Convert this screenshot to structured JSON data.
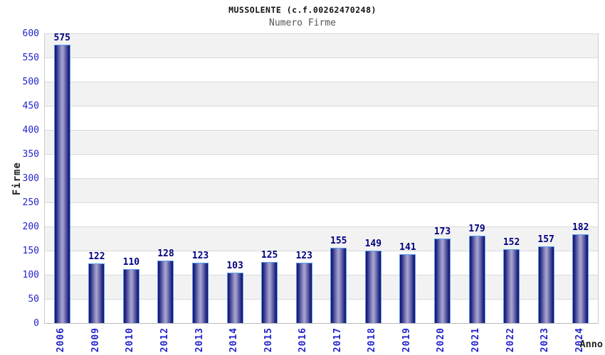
{
  "chart_data": {
    "type": "bar",
    "title": "MUSSOLENTE (c.f.00262470248)",
    "subtitle": "Numero Firme",
    "xlabel": "Anno",
    "ylabel": "Firme",
    "categories": [
      "2006",
      "2009",
      "2010",
      "2012",
      "2013",
      "2014",
      "2015",
      "2016",
      "2017",
      "2018",
      "2019",
      "2020",
      "2021",
      "2022",
      "2023",
      "2024"
    ],
    "values": [
      575,
      122,
      110,
      128,
      123,
      103,
      125,
      123,
      155,
      149,
      141,
      173,
      179,
      152,
      157,
      182
    ],
    "ylim": [
      0,
      600
    ],
    "yticks": [
      0,
      50,
      100,
      150,
      200,
      250,
      300,
      350,
      400,
      450,
      500,
      550,
      600
    ],
    "grid": "horizontal-bands-every-50",
    "legend": "none",
    "colors": {
      "bar_dark": "#14145f",
      "bar_light": "#a8a8d4",
      "bar_border": "#58a0ec",
      "tick_label_blue": "#2424cc",
      "value_label_navy": "#000080",
      "band_gray": "#f2f2f2",
      "gridline": "#d9d9d9",
      "title": "#111111",
      "subtitle": "#555555",
      "axis_title": "#222222"
    }
  }
}
